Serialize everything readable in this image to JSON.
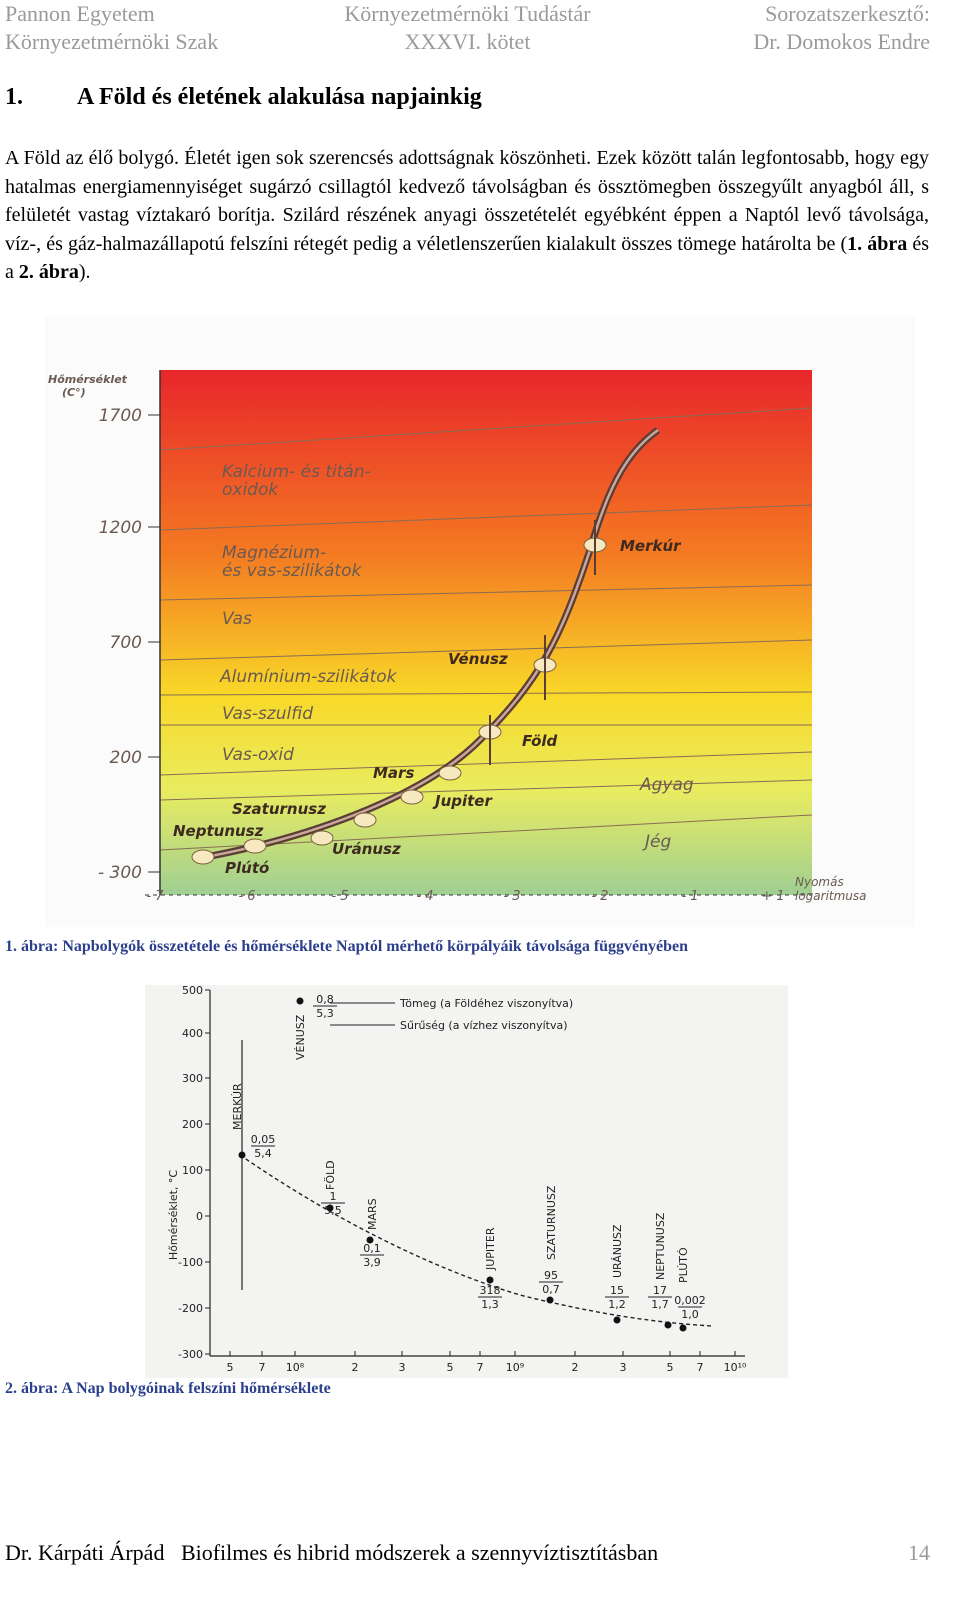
{
  "header": {
    "left": [
      "Pannon Egyetem",
      "Környezetmérnöki Szak"
    ],
    "center": [
      "Környezetmérnöki Tudástár",
      "XXXVI. kötet"
    ],
    "right": [
      "Sorozatszerkesztő:",
      "Dr. Domokos Endre"
    ]
  },
  "section": {
    "number": "1.",
    "title": "A Föld és életének alakulása napjainkig"
  },
  "paragraph": [
    "A Föld az élő bolygó. Életét igen sok szerencsés adottságnak köszönheti. Ezek között talán legfontosabb, hogy egy hatalmas energiamennyiséget sugárzó csillagtól kedvező távolságban és össztömegben összegyűlt anyagból áll, s felületét vastag víztakaró borítja. Szilárd részének anyagi összetételét egyébként éppen a Naptól levő távolsága, víz-, és gáz-halmazállapotú felszíni rétegét pedig a véletlenszerűen kialakult összes tömege határolta be (",
    "1. ábra",
    " és a ",
    "2. ábra",
    ")."
  ],
  "figure1": {
    "axis_title": [
      "Hőmérséklet",
      "(C°)"
    ],
    "yticks": [
      "1700",
      "1200",
      "700",
      "200",
      "- 300"
    ],
    "xticks": [
      "- 7",
      "- 6",
      "- 5",
      "- 4",
      "- 3",
      "- 2",
      "- 1",
      "+ 1"
    ],
    "x_axis_title": [
      "Nyomás",
      "logaritmusa"
    ],
    "zones": [
      [
        "Kalcium- és titán-",
        "oxidok"
      ],
      [
        "Magnézium-",
        "és vas-szilikátok"
      ],
      [
        "Vas"
      ],
      [
        "Alumínium-szilikátok"
      ],
      [
        "Vas-szulfid"
      ],
      [
        "Vas-oxid"
      ],
      [
        "Agyag"
      ],
      [
        "Jég"
      ]
    ],
    "planets": [
      "Merkúr",
      "Vénusz",
      "Föld",
      "Mars",
      "Jupiter",
      "Szaturnusz",
      "Uránusz",
      "Neptunusz",
      "Plútó"
    ],
    "caption": "1. ábra: Napbolygók összetétele és hőmérséklete Naptól mérhető körpályáik távolsága függvényében"
  },
  "figure2": {
    "axis_title": "Hőmérséklet, °C",
    "yticks": [
      "500",
      "400",
      "300",
      "200",
      "100",
      "0",
      "-100",
      "-200",
      "-300"
    ],
    "xticks": [
      "5",
      "7",
      "10⁸",
      "2",
      "3",
      "5",
      "7",
      "10⁹",
      "2",
      "3",
      "5",
      "7",
      "10¹⁰"
    ],
    "legend": [
      "Tömeg (a Földéhez viszonyítva)",
      "Sűrűség (a vízhez viszonyítva)"
    ],
    "planets": [
      {
        "name": "VÉNUSZ",
        "mass": "0,8",
        "density": "5,3"
      },
      {
        "name": "MERKÚR",
        "mass": "0,05",
        "density": "5,4"
      },
      {
        "name": "FÖLD",
        "mass": "1",
        "density": "5,5"
      },
      {
        "name": "MARS",
        "mass": "0,1",
        "density": "3,9"
      },
      {
        "name": "JUPITER",
        "mass": "318",
        "density": "1,3"
      },
      {
        "name": "SZATURNUSZ",
        "mass": "95",
        "density": "0,7"
      },
      {
        "name": "URÁNUSZ",
        "mass": "15",
        "density": "1,2"
      },
      {
        "name": "NEPTUNUSZ",
        "mass": "17",
        "density": "1,7"
      },
      {
        "name": "PLÚTÓ",
        "mass": "0,002",
        "density": "1,0"
      }
    ],
    "caption": "2. ábra: A Nap bolygóinak felszíni hőmérséklete"
  },
  "footer": {
    "text": "Dr. Kárpáti Árpád   Biofilmes és hibrid módszerek a szennyvíztisztításban",
    "page": "14"
  }
}
